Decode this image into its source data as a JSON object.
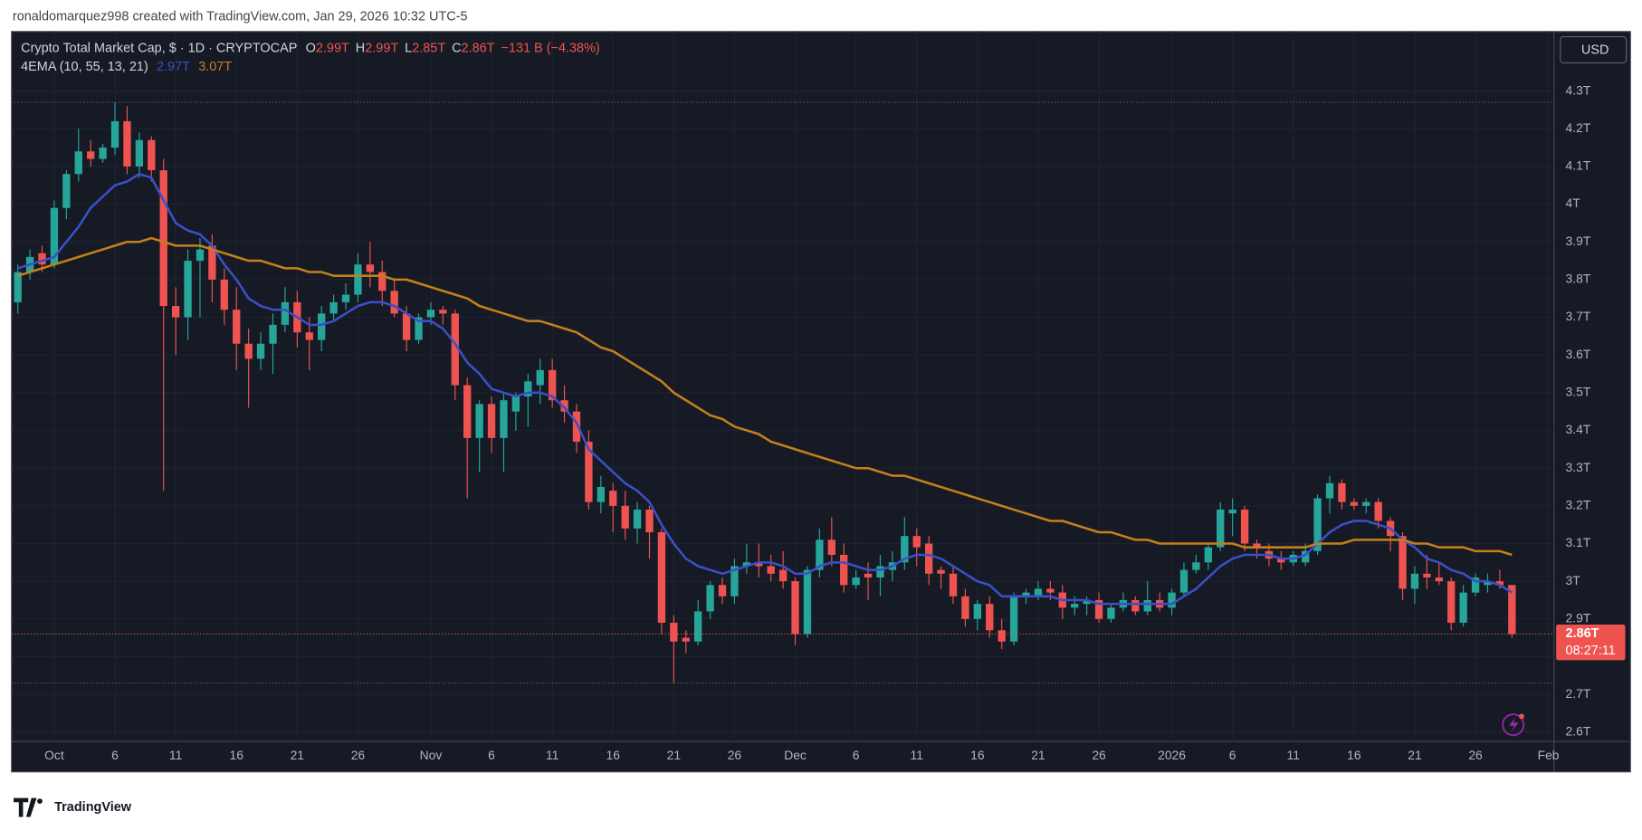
{
  "header": "ronaldomarquez998 created with TradingView.com, Jan 29, 2026 10:32 UTC-5",
  "logo": "TradingView",
  "chart_data": {
    "type": "candlestick",
    "title": "Crypto Total Market Cap, $ · 1D · CRYPTOCAP",
    "ohlc_legend": [
      {
        "label": "O",
        "value": "2.99T"
      },
      {
        "label": "H",
        "value": "2.99T"
      },
      {
        "label": "L",
        "value": "2.85T"
      },
      {
        "label": "C",
        "value": "2.86T"
      }
    ],
    "change": "−131 B (−4.38%)",
    "currency": "USD",
    "countdown": "08:27:11",
    "last_price": {
      "value": 2.86,
      "label": "2.86T"
    },
    "range_high": 4.27,
    "range_low": 2.73,
    "up_color": "#26a69a",
    "down_color": "#ef5350",
    "categories": [
      null,
      null,
      null,
      "Oct",
      null,
      null,
      null,
      null,
      "6",
      null,
      null,
      null,
      null,
      "11",
      null,
      null,
      null,
      null,
      "16",
      null,
      null,
      null,
      null,
      "21",
      null,
      null,
      null,
      null,
      "26",
      null,
      null,
      null,
      null,
      null,
      "Nov",
      null,
      null,
      null,
      null,
      "6",
      null,
      null,
      null,
      null,
      "11",
      null,
      null,
      null,
      null,
      "16",
      null,
      null,
      null,
      null,
      "21",
      null,
      null,
      null,
      null,
      "26",
      null,
      null,
      null,
      null,
      "Dec",
      null,
      null,
      null,
      null,
      "6",
      null,
      null,
      null,
      null,
      "11",
      null,
      null,
      null,
      null,
      "16",
      null,
      null,
      null,
      null,
      "21",
      null,
      null,
      null,
      null,
      "26",
      null,
      null,
      null,
      null,
      null,
      "2026",
      null,
      null,
      null,
      null,
      "6",
      null,
      null,
      null,
      null,
      "11",
      null,
      null,
      null,
      null,
      "16",
      null,
      null,
      null,
      null,
      "21",
      null,
      null,
      null,
      null,
      "26",
      null,
      null,
      null,
      null,
      null,
      "Feb"
    ],
    "open": [
      3.74,
      3.82,
      3.87,
      3.84,
      3.99,
      4.08,
      4.14,
      4.12,
      4.15,
      4.22,
      4.1,
      4.17,
      4.09,
      3.73,
      3.7,
      3.85,
      3.89,
      3.8,
      3.72,
      3.63,
      3.59,
      3.63,
      3.68,
      3.74,
      3.66,
      3.64,
      3.71,
      3.74,
      3.76,
      3.84,
      3.82,
      3.77,
      3.71,
      3.64,
      3.7,
      3.72,
      3.71,
      3.52,
      3.38,
      3.47,
      3.38,
      3.45,
      3.49,
      3.52,
      3.56,
      3.48,
      3.45,
      3.37,
      3.21,
      3.24,
      3.2,
      3.14,
      3.19,
      3.13,
      2.89,
      2.85,
      2.84,
      2.92,
      2.99,
      2.96,
      3.04,
      3.05,
      3.04,
      3.03,
      3.0,
      2.86,
      3.03,
      3.11,
      3.07,
      2.99,
      3.02,
      3.01,
      3.03,
      3.05,
      3.12,
      3.1,
      3.03,
      3.02,
      2.96,
      2.9,
      2.94,
      2.87,
      2.84,
      2.96,
      2.96,
      2.98,
      2.97,
      2.93,
      2.94,
      2.95,
      2.9,
      2.93,
      2.95,
      2.92,
      2.95,
      2.93,
      2.97,
      3.03,
      3.05,
      3.09,
      3.18,
      3.19,
      3.1,
      3.08,
      3.06,
      3.05,
      3.05,
      3.08,
      3.22,
      3.26,
      3.21,
      3.2,
      3.21,
      3.16,
      3.12,
      2.98,
      3.02,
      3.01,
      3.0,
      2.89,
      2.97,
      2.99,
      3.0,
      2.99,
      null,
      null,
      null
    ],
    "high": [
      3.84,
      3.88,
      3.89,
      4.01,
      4.09,
      4.2,
      4.17,
      4.16,
      4.27,
      4.26,
      4.19,
      4.18,
      4.12,
      3.78,
      3.88,
      3.91,
      3.92,
      3.83,
      3.78,
      3.67,
      3.66,
      3.71,
      3.78,
      3.77,
      3.7,
      3.73,
      3.76,
      3.79,
      3.87,
      3.9,
      3.85,
      3.8,
      3.73,
      3.71,
      3.74,
      3.73,
      3.72,
      3.54,
      3.48,
      3.49,
      3.5,
      3.5,
      3.55,
      3.59,
      3.59,
      3.52,
      3.47,
      3.4,
      3.28,
      3.26,
      3.24,
      3.21,
      3.2,
      3.14,
      2.91,
      2.87,
      2.95,
      3.0,
      3.01,
      3.06,
      3.1,
      3.1,
      3.07,
      3.08,
      3.01,
      3.04,
      3.14,
      3.17,
      3.1,
      3.03,
      3.05,
      3.07,
      3.08,
      3.17,
      3.14,
      3.12,
      3.04,
      3.04,
      2.98,
      2.95,
      2.96,
      2.9,
      2.97,
      2.98,
      3.0,
      3.0,
      2.99,
      2.96,
      2.96,
      2.97,
      2.94,
      2.97,
      2.96,
      3.0,
      2.97,
      2.98,
      3.05,
      3.07,
      3.1,
      3.21,
      3.22,
      3.2,
      3.11,
      3.1,
      3.08,
      3.08,
      3.1,
      3.23,
      3.28,
      3.27,
      3.22,
      3.22,
      3.22,
      3.17,
      3.13,
      3.04,
      3.07,
      3.05,
      3.01,
      2.99,
      3.02,
      3.02,
      3.03,
      2.99,
      null,
      null,
      null
    ],
    "low": [
      3.71,
      3.8,
      3.82,
      3.83,
      3.96,
      4.06,
      4.1,
      4.11,
      4.13,
      4.08,
      4.07,
      4.06,
      3.24,
      3.6,
      3.64,
      3.7,
      3.74,
      3.68,
      3.56,
      3.46,
      3.56,
      3.55,
      3.66,
      3.62,
      3.56,
      3.61,
      3.69,
      3.72,
      3.74,
      3.78,
      3.73,
      3.7,
      3.61,
      3.63,
      3.68,
      3.68,
      3.48,
      3.22,
      3.29,
      3.34,
      3.29,
      3.4,
      3.41,
      3.47,
      3.46,
      3.42,
      3.34,
      3.19,
      3.18,
      3.13,
      3.11,
      3.1,
      3.06,
      2.86,
      2.73,
      2.81,
      2.83,
      2.9,
      2.94,
      2.94,
      3.02,
      3.01,
      3.0,
      2.98,
      2.83,
      2.85,
      3.01,
      3.04,
      2.97,
      2.98,
      2.95,
      2.96,
      3.0,
      3.03,
      3.04,
      2.99,
      2.98,
      2.94,
      2.88,
      2.87,
      2.85,
      2.82,
      2.83,
      2.94,
      2.95,
      2.95,
      2.9,
      2.91,
      2.91,
      2.89,
      2.89,
      2.92,
      2.91,
      2.91,
      2.92,
      2.91,
      2.96,
      3.02,
      3.03,
      3.08,
      3.12,
      3.08,
      3.06,
      3.04,
      3.03,
      3.04,
      3.04,
      3.07,
      3.18,
      3.19,
      3.19,
      3.18,
      3.14,
      3.08,
      2.95,
      2.94,
      2.98,
      2.99,
      2.87,
      2.88,
      2.96,
      2.97,
      2.98,
      2.85,
      null,
      null,
      null
    ],
    "close": [
      3.82,
      3.86,
      3.84,
      3.99,
      4.08,
      4.14,
      4.12,
      4.15,
      4.22,
      4.1,
      4.17,
      4.09,
      3.73,
      3.7,
      3.85,
      3.88,
      3.8,
      3.72,
      3.63,
      3.59,
      3.63,
      3.68,
      3.74,
      3.66,
      3.64,
      3.71,
      3.74,
      3.76,
      3.84,
      3.82,
      3.77,
      3.71,
      3.64,
      3.7,
      3.72,
      3.71,
      3.52,
      3.38,
      3.47,
      3.38,
      3.48,
      3.49,
      3.53,
      3.56,
      3.48,
      3.45,
      3.37,
      3.21,
      3.25,
      3.2,
      3.14,
      3.19,
      3.13,
      2.89,
      2.84,
      2.84,
      2.92,
      2.99,
      2.96,
      3.04,
      3.05,
      3.04,
      3.02,
      3.0,
      2.86,
      3.03,
      3.11,
      3.07,
      2.99,
      3.01,
      3.01,
      3.04,
      3.05,
      3.12,
      3.09,
      3.02,
      3.02,
      2.96,
      2.9,
      2.94,
      2.87,
      2.84,
      2.96,
      2.97,
      2.98,
      2.97,
      2.93,
      2.94,
      2.95,
      2.9,
      2.93,
      2.95,
      2.92,
      2.95,
      2.93,
      2.97,
      3.03,
      3.05,
      3.09,
      3.19,
      3.19,
      3.1,
      3.09,
      3.06,
      3.05,
      3.07,
      3.08,
      3.22,
      3.26,
      3.21,
      3.2,
      3.21,
      3.16,
      3.12,
      2.98,
      3.02,
      3.01,
      3.0,
      2.89,
      2.97,
      3.01,
      3.0,
      2.99,
      2.86,
      null,
      null,
      null
    ],
    "indicator": {
      "name": "4EMA (10, 55, 13, 21)",
      "lines": [
        {
          "color": "#3b4fc8",
          "last_label": "2.97T",
          "values": [
            3.83,
            3.84,
            3.85,
            3.86,
            3.9,
            3.94,
            3.99,
            4.02,
            4.05,
            4.06,
            4.08,
            4.07,
            4.01,
            3.95,
            3.93,
            3.92,
            3.89,
            3.84,
            3.8,
            3.75,
            3.73,
            3.72,
            3.72,
            3.7,
            3.68,
            3.68,
            3.69,
            3.71,
            3.73,
            3.74,
            3.74,
            3.73,
            3.71,
            3.69,
            3.69,
            3.67,
            3.63,
            3.58,
            3.55,
            3.51,
            3.5,
            3.49,
            3.5,
            3.5,
            3.49,
            3.46,
            3.42,
            3.35,
            3.32,
            3.29,
            3.26,
            3.24,
            3.21,
            3.15,
            3.1,
            3.06,
            3.04,
            3.03,
            3.02,
            3.03,
            3.04,
            3.05,
            3.05,
            3.04,
            3.02,
            3.02,
            3.04,
            3.05,
            3.05,
            3.04,
            3.03,
            3.03,
            3.04,
            3.06,
            3.07,
            3.07,
            3.06,
            3.04,
            3.02,
            3.0,
            2.99,
            2.96,
            2.96,
            2.96,
            2.96,
            2.96,
            2.95,
            2.95,
            2.95,
            2.94,
            2.94,
            2.94,
            2.94,
            2.94,
            2.94,
            2.94,
            2.96,
            2.98,
            3.01,
            3.04,
            3.06,
            3.07,
            3.07,
            3.07,
            3.06,
            3.06,
            3.07,
            3.1,
            3.13,
            3.15,
            3.16,
            3.16,
            3.15,
            3.14,
            3.11,
            3.09,
            3.06,
            3.05,
            3.03,
            3.02,
            3.0,
            3.0,
            2.99,
            2.97,
            null,
            null,
            null
          ]
        },
        {
          "color": "#c4801c",
          "last_label": "3.07T",
          "values": [
            3.81,
            3.82,
            3.83,
            3.84,
            3.85,
            3.86,
            3.87,
            3.88,
            3.89,
            3.9,
            3.9,
            3.91,
            3.9,
            3.89,
            3.89,
            3.89,
            3.88,
            3.87,
            3.86,
            3.85,
            3.85,
            3.84,
            3.83,
            3.83,
            3.82,
            3.82,
            3.81,
            3.81,
            3.81,
            3.81,
            3.81,
            3.8,
            3.8,
            3.79,
            3.78,
            3.77,
            3.76,
            3.75,
            3.73,
            3.72,
            3.71,
            3.7,
            3.69,
            3.69,
            3.68,
            3.67,
            3.66,
            3.64,
            3.62,
            3.61,
            3.59,
            3.57,
            3.55,
            3.53,
            3.5,
            3.48,
            3.46,
            3.44,
            3.43,
            3.41,
            3.4,
            3.39,
            3.37,
            3.36,
            3.35,
            3.34,
            3.33,
            3.32,
            3.31,
            3.3,
            3.3,
            3.29,
            3.28,
            3.28,
            3.27,
            3.26,
            3.25,
            3.24,
            3.23,
            3.22,
            3.21,
            3.2,
            3.19,
            3.18,
            3.17,
            3.16,
            3.16,
            3.15,
            3.14,
            3.13,
            3.13,
            3.12,
            3.11,
            3.11,
            3.1,
            3.1,
            3.1,
            3.1,
            3.1,
            3.1,
            3.1,
            3.09,
            3.09,
            3.09,
            3.09,
            3.09,
            3.09,
            3.1,
            3.1,
            3.1,
            3.11,
            3.11,
            3.11,
            3.11,
            3.11,
            3.1,
            3.1,
            3.09,
            3.09,
            3.09,
            3.08,
            3.08,
            3.08,
            3.07,
            null,
            null,
            null
          ]
        }
      ]
    },
    "ylim": [
      2.575,
      4.458
    ],
    "yticks": [
      {
        "value": 2.6,
        "label": "2.6T"
      },
      {
        "value": 2.7,
        "label": "2.7T"
      },
      {
        "value": 2.8,
        "label": "2.8T"
      },
      {
        "value": 2.9,
        "label": "2.9T"
      },
      {
        "value": 3,
        "label": "3T"
      },
      {
        "value": 3.1,
        "label": "3.1T"
      },
      {
        "value": 3.2,
        "label": "3.2T"
      },
      {
        "value": 3.3,
        "label": "3.3T"
      },
      {
        "value": 3.4,
        "label": "3.4T"
      },
      {
        "value": 3.5,
        "label": "3.5T"
      },
      {
        "value": 3.6,
        "label": "3.6T"
      },
      {
        "value": 3.7,
        "label": "3.7T"
      },
      {
        "value": 3.8,
        "label": "3.8T"
      },
      {
        "value": 3.9,
        "label": "3.9T"
      },
      {
        "value": 4,
        "label": "4T"
      },
      {
        "value": 4.1,
        "label": "4.1T"
      },
      {
        "value": 4.2,
        "label": "4.2T"
      },
      {
        "value": 4.3,
        "label": "4.3T"
      }
    ],
    "grid": true
  }
}
